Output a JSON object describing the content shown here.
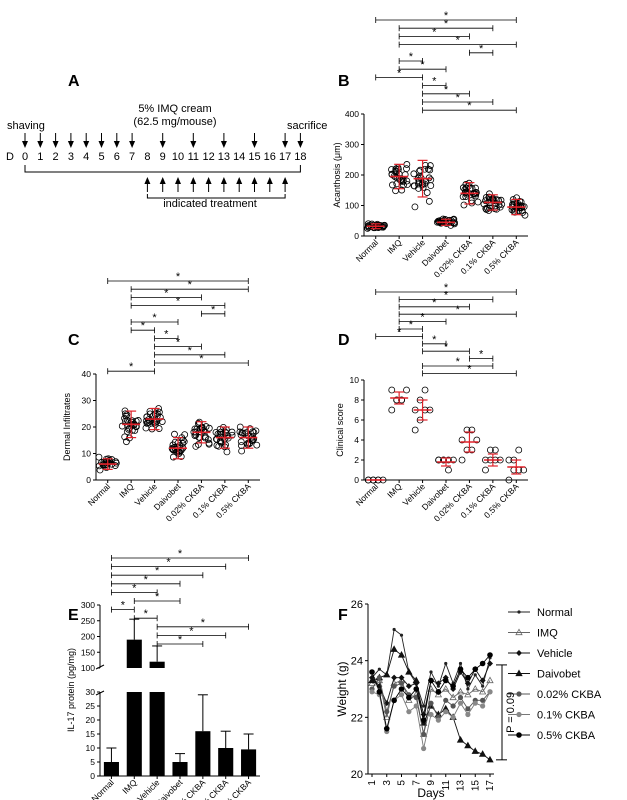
{
  "figure_panels": [
    "A",
    "B",
    "C",
    "D",
    "E",
    "F"
  ],
  "chart_data": [
    {
      "panel": "A",
      "type": "diagram",
      "title_line1": "5% IMQ cream",
      "title_line2": "(62.5 mg/mouse)",
      "day_prefix": "D",
      "days": [
        "0",
        "1",
        "2",
        "3",
        "4",
        "5",
        "6",
        "7",
        "8",
        "9",
        "10",
        "11",
        "12",
        "13",
        "14",
        "15",
        "16",
        "17",
        "18"
      ],
      "shaving_label": "shaving",
      "sacrifice_label": "sacrifice",
      "treatment_label": "indicated treatment",
      "top_arrow_days": [
        0,
        1,
        2,
        3,
        4,
        5,
        6,
        7,
        9,
        11,
        13,
        15,
        17,
        18
      ],
      "bottom_arrow_days": [
        8,
        9,
        10,
        11,
        12,
        13,
        14,
        15,
        16,
        17
      ]
    },
    {
      "panel": "B",
      "type": "scatter",
      "categories": [
        "Normal",
        "IMQ",
        "Vehicle",
        "Daivobet",
        "0.02% CKBA",
        "0.1% CKBA",
        "0.5% CKBA"
      ],
      "ylabel": "Acanthosis (μm)",
      "ylim": [
        0,
        400
      ],
      "yticks": [
        "0",
        "100",
        "200",
        "300",
        "400"
      ],
      "means": [
        32,
        195,
        188,
        45,
        140,
        110,
        95
      ],
      "sd": [
        8,
        40,
        60,
        10,
        35,
        25,
        25
      ],
      "points_per_group": 28,
      "significance": [
        [
          0,
          6
        ],
        [
          1,
          5
        ],
        [
          1,
          4
        ],
        [
          1,
          6
        ],
        [
          4,
          5
        ],
        [
          1,
          2
        ],
        [
          1,
          3
        ],
        [
          0,
          2
        ],
        [
          2,
          3
        ],
        [
          2,
          4
        ],
        [
          2,
          5
        ],
        [
          2,
          6
        ]
      ],
      "star": "*"
    },
    {
      "panel": "C",
      "type": "scatter",
      "categories": [
        "Normal",
        "IMQ",
        "Vehicle",
        "Daivobet",
        "0.02% CKBA",
        "0.1% CKBA",
        "0.5% CKBA"
      ],
      "ylabel": "Dermal Infiltrates",
      "ylim": [
        0,
        40
      ],
      "yticks": [
        "0",
        "10",
        "20",
        "30",
        "40"
      ],
      "means": [
        6,
        21,
        23,
        12,
        18,
        16,
        16
      ],
      "sd": [
        2,
        5,
        4,
        4,
        4,
        4,
        4
      ],
      "points_per_group": 26,
      "significance": [
        [
          0,
          6
        ],
        [
          1,
          6
        ],
        [
          1,
          4
        ],
        [
          1,
          5
        ],
        [
          4,
          5
        ],
        [
          1,
          3
        ],
        [
          1,
          2
        ],
        [
          2,
          3
        ],
        [
          2,
          4
        ],
        [
          2,
          5
        ],
        [
          2,
          6
        ],
        [
          0,
          2
        ]
      ],
      "star": "*"
    },
    {
      "panel": "D",
      "type": "scatter",
      "categories": [
        "Normal",
        "IMQ",
        "Vehicle",
        "Daivobet",
        "0.02% CKBA",
        "0.1% CKBA",
        "0.5% CKBA"
      ],
      "ylabel": "Clinical score",
      "ylim": [
        0,
        10
      ],
      "yticks": [
        "0",
        "2",
        "4",
        "6",
        "8",
        "10"
      ],
      "means": [
        0,
        8.2,
        7.0,
        1.8,
        3.8,
        2.0,
        1.3
      ],
      "sd": [
        0,
        0.6,
        1.0,
        0.4,
        1.0,
        0.6,
        0.7
      ],
      "points": [
        [
          0,
          0,
          0,
          0,
          0,
          0,
          0
        ],
        [
          7,
          8,
          8,
          9,
          9,
          8,
          8
        ],
        [
          5,
          6,
          7,
          7,
          7,
          8,
          9
        ],
        [
          2,
          2,
          2,
          2,
          2,
          2,
          1
        ],
        [
          2,
          3,
          3,
          4,
          4,
          5,
          5
        ],
        [
          1,
          2,
          2,
          2,
          2,
          3,
          3
        ],
        [
          0,
          1,
          1,
          1,
          2,
          2,
          3
        ]
      ],
      "significance": [
        [
          0,
          6
        ],
        [
          1,
          5
        ],
        [
          1,
          4
        ],
        [
          1,
          6
        ],
        [
          1,
          3
        ],
        [
          1,
          2
        ],
        [
          0,
          2
        ],
        [
          2,
          3
        ],
        [
          2,
          4
        ],
        [
          4,
          5
        ],
        [
          2,
          5
        ],
        [
          2,
          6
        ]
      ],
      "star": "*"
    },
    {
      "panel": "E",
      "type": "bar",
      "categories": [
        "Normal",
        "IMQ",
        "Vehicle",
        "Daivobet",
        "0.02% CKBA",
        "0.1% CKBA",
        "0.5% CKBA"
      ],
      "ylabel": "IL-17 protein (pg/mg)",
      "values": [
        5,
        190,
        120,
        5,
        16,
        10,
        9.5
      ],
      "errors": [
        5,
        65,
        50,
        3,
        13,
        6,
        5.5
      ],
      "yticks_lower": [
        "0",
        "5",
        "10",
        "15",
        "20",
        "25",
        "30"
      ],
      "yticks_upper": [
        "100",
        "150",
        "200",
        "250",
        "300"
      ],
      "axis_break": [
        30,
        100
      ],
      "significance": [
        [
          0,
          6
        ],
        [
          0,
          5
        ],
        [
          0,
          4
        ],
        [
          0,
          3
        ],
        [
          0,
          2
        ],
        [
          1,
          3
        ],
        [
          0,
          1
        ],
        [
          1,
          2
        ],
        [
          2,
          6
        ],
        [
          2,
          5
        ],
        [
          2,
          4
        ]
      ],
      "star": "*"
    },
    {
      "panel": "F",
      "type": "line",
      "xlabel": "Days",
      "ylabel": "Weight (g)",
      "ylim": [
        20,
        26
      ],
      "yticks": [
        "20",
        "22",
        "24",
        "26"
      ],
      "x": [
        1,
        2,
        3,
        4,
        5,
        6,
        7,
        8,
        9,
        10,
        11,
        12,
        13,
        14,
        15,
        16,
        17
      ],
      "xticks": [
        "1",
        "3",
        "5",
        "7",
        "9",
        "11",
        "13",
        "15",
        "17"
      ],
      "series": [
        {
          "name": "Normal",
          "values": [
            23.4,
            23.7,
            23.5,
            25.1,
            24.9,
            23.6,
            23.2,
            22.4,
            23.6,
            23.1,
            23.9,
            23.2,
            23.9,
            23.0,
            23.5,
            23.1,
            24.1
          ]
        },
        {
          "name": "IMQ",
          "values": [
            23.2,
            23.3,
            22.0,
            23.2,
            23.3,
            22.6,
            22.8,
            21.4,
            23.0,
            22.8,
            23.0,
            22.7,
            22.9,
            22.8,
            23.0,
            22.9,
            23.3
          ]
        },
        {
          "name": "Vehicle",
          "values": [
            23.4,
            23.1,
            22.5,
            23.4,
            23.4,
            23.1,
            23.2,
            22.1,
            23.3,
            23.2,
            23.4,
            23.0,
            23.6,
            23.2,
            23.7,
            23.3,
            23.9
          ]
        },
        {
          "name": "Daivobet",
          "values": [
            23.3,
            23.4,
            23.5,
            24.4,
            24.2,
            23.6,
            23.3,
            21.8,
            22.4,
            22.1,
            22.3,
            22.0,
            21.2,
            21.0,
            20.8,
            20.7,
            20.5
          ]
        },
        {
          "name": "0.02% CKBA",
          "values": [
            23.0,
            23.4,
            22.2,
            23.1,
            23.2,
            22.8,
            22.7,
            21.4,
            22.5,
            22.0,
            22.6,
            22.4,
            22.7,
            22.3,
            22.6,
            22.6,
            22.9
          ]
        },
        {
          "name": "0.1% CKBA",
          "values": [
            22.9,
            22.8,
            21.5,
            22.6,
            22.8,
            22.2,
            22.4,
            20.9,
            22.1,
            21.9,
            22.2,
            22.0,
            22.5,
            22.1,
            22.5,
            22.4,
            22.9
          ]
        },
        {
          "name": "0.5% CKBA",
          "values": [
            23.6,
            22.9,
            21.6,
            22.6,
            23.0,
            22.7,
            23.0,
            21.9,
            23.3,
            22.9,
            23.3,
            23.1,
            23.7,
            23.4,
            23.7,
            23.9,
            24.2
          ]
        }
      ],
      "p_annotation": "P = 0.09"
    }
  ]
}
